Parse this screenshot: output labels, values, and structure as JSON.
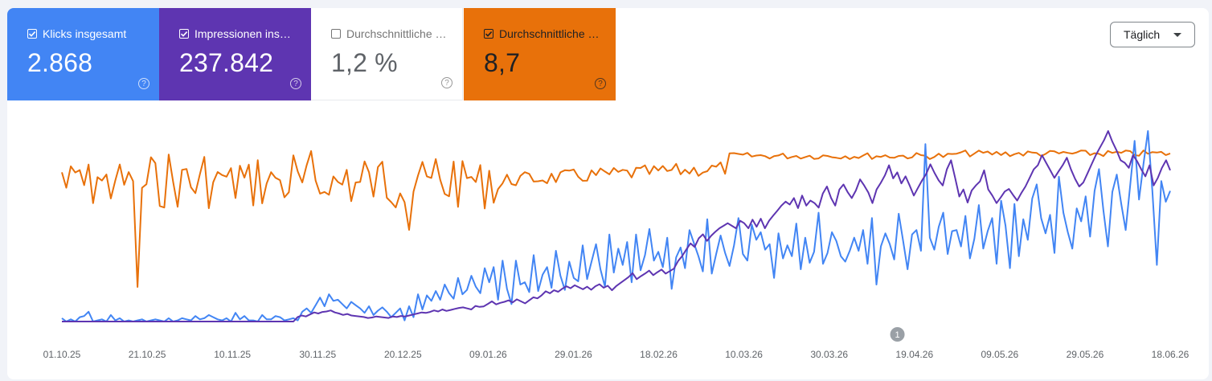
{
  "metrics": [
    {
      "label": "Klicks insgesamt",
      "value": "2.868",
      "checked": true,
      "color": "#4285f4"
    },
    {
      "label": "Impressionen ins…",
      "value": "237.842",
      "checked": true,
      "color": "#5e35b1"
    },
    {
      "label": "Durchschnittliche …",
      "value": "1,2 %",
      "checked": false,
      "color": "#ffffff"
    },
    {
      "label": "Durchschnittliche …",
      "value": "8,7",
      "checked": true,
      "color": "#e8710a"
    }
  ],
  "help_glyph": "?",
  "dropdown": {
    "label": "Täglich"
  },
  "annotation": {
    "label": "1",
    "date": "15.04.26"
  },
  "chart_data": {
    "type": "line",
    "x_start": "01.10.25",
    "x_end": "18.06.26",
    "x_tick_labels": [
      "01.10.25",
      "21.10.25",
      "10.11.25",
      "30.11.25",
      "20.12.25",
      "09.01.26",
      "29.01.26",
      "18.02.26",
      "10.03.26",
      "30.03.26",
      "19.04.26",
      "09.05.26",
      "29.05.26",
      "18.06.26"
    ],
    "series": [
      {
        "name": "Klicks insgesamt",
        "color": "#4285f4",
        "values": [
          3,
          0,
          2,
          0,
          4,
          5,
          9,
          0,
          1,
          2,
          0,
          6,
          1,
          3,
          0,
          1,
          0,
          1,
          2,
          0,
          1,
          2,
          1,
          0,
          3,
          0,
          1,
          3,
          2,
          1,
          5,
          2,
          3,
          6,
          4,
          2,
          1,
          3,
          0,
          8,
          2,
          5,
          1,
          1,
          0,
          6,
          2,
          2,
          5,
          4,
          1,
          2,
          3,
          1,
          9,
          12,
          8,
          15,
          22,
          14,
          25,
          19,
          20,
          16,
          12,
          18,
          15,
          12,
          8,
          14,
          6,
          10,
          13,
          9,
          4,
          8,
          12,
          1,
          14,
          4,
          25,
          11,
          24,
          19,
          28,
          20,
          34,
          26,
          21,
          40,
          25,
          29,
          42,
          32,
          26,
          49,
          36,
          50,
          20,
          56,
          30,
          16,
          56,
          34,
          36,
          27,
          61,
          28,
          43,
          50,
          31,
          65,
          42,
          29,
          55,
          40,
          37,
          70,
          39,
          55,
          71,
          48,
          32,
          80,
          45,
          67,
          52,
          73,
          36,
          80,
          47,
          61,
          85,
          56,
          64,
          50,
          77,
          30,
          59,
          68,
          49,
          84,
          72,
          60,
          46,
          94,
          44,
          62,
          79,
          63,
          51,
          70,
          95,
          62,
          56,
          89,
          75,
          82,
          66,
          71,
          40,
          81,
          58,
          70,
          60,
          90,
          48,
          77,
          54,
          64,
          100,
          53,
          63,
          82,
          74,
          60,
          55,
          65,
          77,
          65,
          84,
          53,
          95,
          34,
          69,
          81,
          71,
          57,
          99,
          74,
          48,
          80,
          84,
          65,
          163,
          77,
          66,
          87,
          100,
          62,
          83,
          84,
          69,
          97,
          58,
          76,
          107,
          67,
          83,
          95,
          53,
          111,
          88,
          49,
          108,
          60,
          94,
          75,
          113,
          126,
          95,
          81,
          98,
          63,
          133,
          100,
          82,
          67,
          104,
          92,
          115,
          78,
          120,
          140,
          102,
          69,
          119,
          135,
          108,
          84,
          125,
          166,
          112,
          145,
          175,
          120,
          52,
          129,
          110,
          120
        ]
      },
      {
        "name": "Impressionen ins…",
        "color": "#5e35b1",
        "values": [
          0,
          0,
          0,
          0,
          0,
          0,
          0,
          0,
          0,
          0,
          0,
          0,
          0,
          0,
          0,
          0,
          0,
          0,
          0,
          0,
          0,
          0,
          0,
          0,
          0,
          0,
          0,
          0,
          0,
          0,
          0,
          0,
          0,
          0,
          0,
          0,
          0,
          0,
          0,
          0,
          0,
          0,
          0,
          0,
          0,
          0,
          0,
          0,
          0,
          0,
          0,
          0,
          0,
          0,
          0,
          0,
          0,
          9,
          12,
          10,
          14,
          18,
          16,
          19,
          20,
          22,
          18,
          16,
          13,
          15,
          12,
          11,
          10,
          9,
          7,
          8,
          10,
          9,
          8,
          7,
          10,
          9,
          11,
          10,
          12,
          14,
          16,
          18,
          17,
          19,
          22,
          20,
          24,
          21,
          23,
          25,
          27,
          28,
          26,
          24,
          31,
          29,
          30,
          35,
          40,
          34,
          37,
          39,
          42,
          38,
          44,
          40,
          36,
          42,
          48,
          46,
          52,
          60,
          56,
          62,
          59,
          65,
          70,
          66,
          72,
          68,
          64,
          69,
          63,
          70,
          74,
          67,
          71,
          62,
          70,
          76,
          82,
          88,
          96,
          84,
          90,
          95,
          101,
          92,
          98,
          103,
          95,
          100,
          105,
          120,
          130,
          143,
          155,
          148,
          165,
          173,
          160,
          170,
          178,
          185,
          190,
          195,
          190,
          185,
          200,
          195,
          185,
          202,
          188,
          204,
          185,
          200,
          210,
          220,
          230,
          238,
          232,
          245,
          225,
          250,
          230,
          240,
          235,
          226,
          254,
          268,
          245,
          230,
          262,
          272,
          257,
          245,
          260,
          282,
          270,
          256,
          235,
          262,
          275,
          290,
          310,
          284,
          296,
          274,
          288,
          270,
          250,
          265,
          280,
          293,
          312,
          295,
          280,
          270,
          302,
          320,
          285,
          248,
          262,
          236,
          260,
          270,
          278,
          300,
          262,
          250,
          235,
          246,
          258,
          263,
          251,
          240,
          255,
          268,
          285,
          302,
          310,
          330,
          315,
          300,
          285,
          298,
          310,
          325,
          302,
          283,
          268,
          276,
          294,
          312,
          330,
          345,
          360,
          378,
          357,
          340,
          320,
          315,
          305,
          330,
          318,
          302,
          288,
          310,
          270,
          285,
          305,
          320,
          300
        ]
      }
    ]
  }
}
